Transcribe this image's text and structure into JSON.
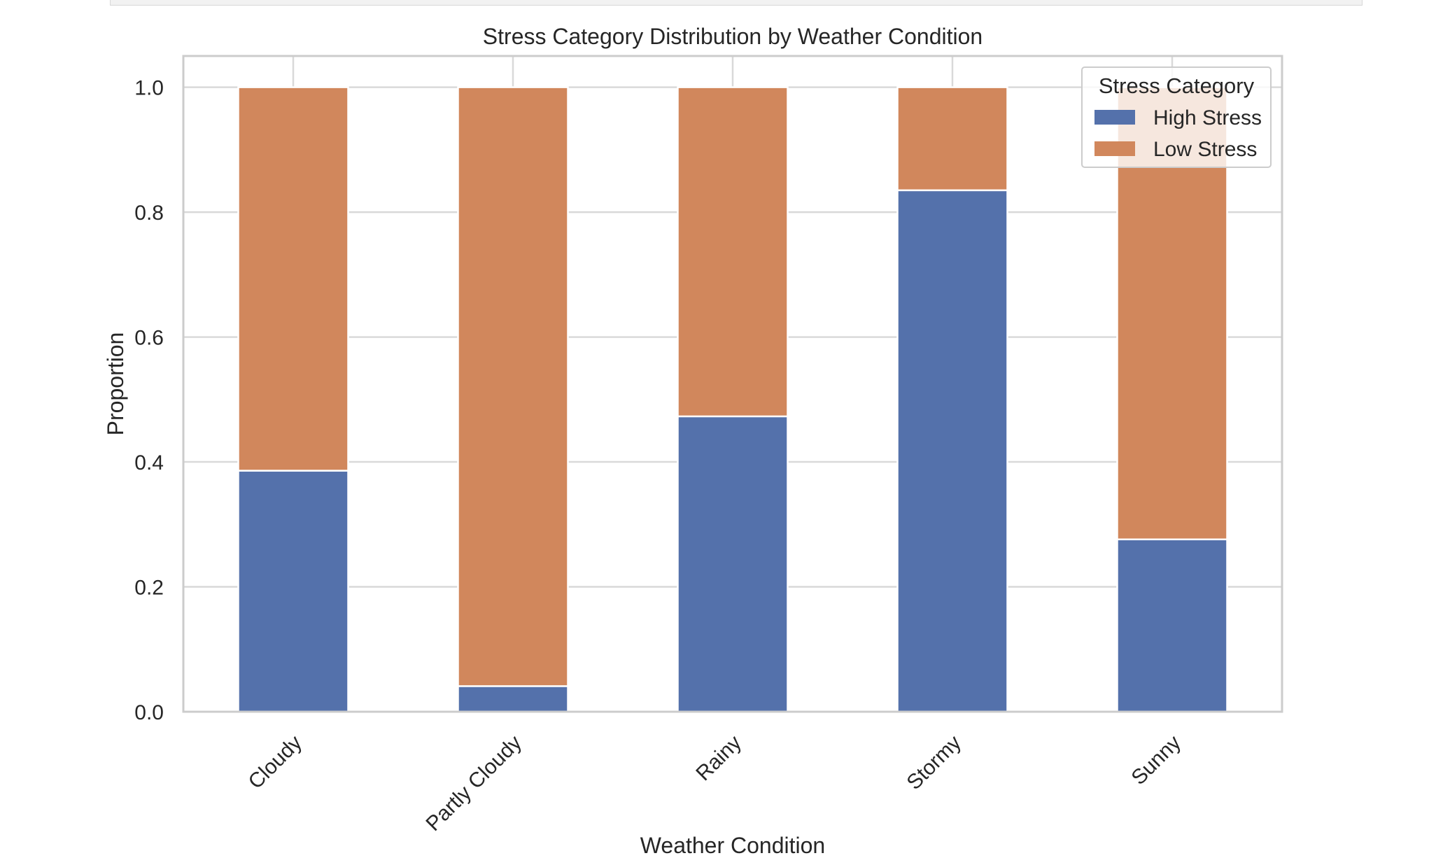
{
  "chart_data": {
    "type": "bar",
    "stacked": true,
    "title": "Stress Category Distribution by Weather Condition",
    "xlabel": "Weather Condition",
    "ylabel": "Proportion",
    "ylim": [
      0,
      1.05
    ],
    "yticks": [
      0.0,
      0.2,
      0.4,
      0.6,
      0.8,
      1.0
    ],
    "ytick_labels": [
      "0.0",
      "0.2",
      "0.4",
      "0.6",
      "0.8",
      "1.0"
    ],
    "categories": [
      "Cloudy",
      "Partly Cloudy",
      "Rainy",
      "Stormy",
      "Sunny"
    ],
    "series": [
      {
        "name": "High Stress",
        "color": "#5471ab",
        "values": [
          0.386,
          0.041,
          0.473,
          0.835,
          0.276
        ]
      },
      {
        "name": "Low Stress",
        "color": "#d1875c",
        "values": [
          0.614,
          0.959,
          0.527,
          0.165,
          0.724
        ]
      }
    ],
    "legend": {
      "title": "Stress Category",
      "position": "top-right"
    },
    "grid": true,
    "x_tick_rotation": 45
  }
}
